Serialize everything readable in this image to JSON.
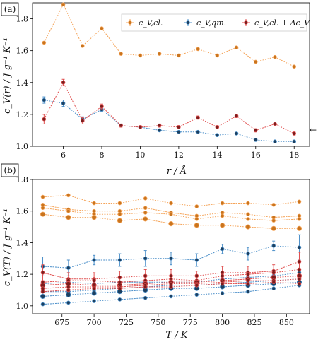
{
  "chart_data": [
    {
      "type": "line",
      "panel_label": "(a)",
      "xlabel": "r / Å",
      "ylabel": "c_V(r) / J g⁻¹ K⁻¹",
      "xlim": [
        4.4,
        18.8
      ],
      "ylim": [
        1.0,
        1.9
      ],
      "xticks": [
        4,
        6,
        8,
        10,
        12,
        14,
        16,
        18
      ],
      "yticks": [
        1.0,
        1.2,
        1.4,
        1.6,
        1.8
      ],
      "legend_position": "top-right",
      "annotation_arrow": "←",
      "series": [
        {
          "name": "c_V,cl.",
          "color": "#f5a55b",
          "marker_color": "#c8741e",
          "x": [
            5,
            6,
            7,
            8,
            9,
            10,
            11,
            12,
            13,
            14,
            15,
            16,
            17,
            18
          ],
          "y": [
            1.65,
            1.89,
            1.63,
            1.74,
            1.58,
            1.57,
            1.58,
            1.57,
            1.61,
            1.57,
            1.62,
            1.53,
            1.56,
            1.5
          ]
        },
        {
          "name": "c_V,qm.",
          "color": "#4b8fc9",
          "marker_color": "#1c3f5f",
          "x": [
            5,
            6,
            7,
            8,
            9,
            10,
            11,
            12,
            13,
            14,
            15,
            16,
            17,
            18
          ],
          "y": [
            1.29,
            1.27,
            1.17,
            1.23,
            1.13,
            1.12,
            1.1,
            1.09,
            1.09,
            1.07,
            1.08,
            1.04,
            1.03,
            1.03
          ],
          "err": [
            0.02,
            0.02,
            0.015,
            0.01,
            0.005,
            0.005,
            0.005,
            0.005,
            0.005,
            0.005,
            0.005,
            0.005,
            0.005,
            0.005
          ]
        },
        {
          "name": "c_V,cl. + Δc_V",
          "color": "#e05050",
          "marker_color": "#7a1d1d",
          "x": [
            5,
            6,
            7,
            8,
            9,
            10,
            11,
            12,
            13,
            14,
            15,
            16,
            17,
            18
          ],
          "y": [
            1.17,
            1.4,
            1.16,
            1.25,
            1.13,
            1.12,
            1.13,
            1.12,
            1.18,
            1.12,
            1.19,
            1.1,
            1.14,
            1.08
          ],
          "err": [
            0.03,
            0.02,
            0.02,
            0.015,
            0.01,
            0.01,
            0.01,
            0.01,
            0.01,
            0.01,
            0.01,
            0.01,
            0.01,
            0.01
          ]
        }
      ]
    },
    {
      "type": "line",
      "panel_label": "(b)",
      "xlabel": "T / K",
      "ylabel": "c_V(T) / J g⁻¹ K⁻¹",
      "xlim": [
        652,
        868
      ],
      "ylim": [
        0.95,
        1.8
      ],
      "xticks": [
        675,
        700,
        725,
        750,
        775,
        800,
        825,
        850
      ],
      "yticks": [
        1.0,
        1.2,
        1.4,
        1.6,
        1.8
      ],
      "x": [
        660,
        680,
        700,
        720,
        740,
        760,
        780,
        800,
        820,
        840,
        860
      ],
      "series": [
        {
          "group": "cl",
          "y": [
            1.69,
            1.7,
            1.65,
            1.65,
            1.68,
            1.65,
            1.63,
            1.65,
            1.65,
            1.64,
            1.66
          ]
        },
        {
          "group": "cl",
          "y": [
            1.64,
            1.61,
            1.6,
            1.6,
            1.62,
            1.59,
            1.57,
            1.59,
            1.58,
            1.56,
            1.57
          ]
        },
        {
          "group": "cl",
          "y": [
            1.62,
            1.6,
            1.58,
            1.58,
            1.59,
            1.58,
            1.55,
            1.57,
            1.55,
            1.54,
            1.55
          ]
        },
        {
          "group": "cl",
          "y": [
            1.58,
            1.56,
            1.56,
            1.54,
            1.55,
            1.52,
            1.51,
            1.51,
            1.5,
            1.49,
            1.49
          ]
        },
        {
          "group": "qm",
          "y": [
            1.25,
            1.24,
            1.29,
            1.29,
            1.3,
            1.3,
            1.29,
            1.36,
            1.33,
            1.38,
            1.37
          ],
          "err": [
            0.06,
            0.05,
            0.03,
            0.04,
            0.05,
            0.04,
            0.04,
            0.03,
            0.04,
            0.03,
            0.08
          ]
        },
        {
          "group": "qm",
          "y": [
            1.14,
            1.15,
            1.14,
            1.15,
            1.15,
            1.15,
            1.15,
            1.17,
            1.18,
            1.19,
            1.21
          ]
        },
        {
          "group": "qm",
          "y": [
            1.09,
            1.09,
            1.1,
            1.11,
            1.12,
            1.13,
            1.13,
            1.14,
            1.15,
            1.16,
            1.17
          ]
        },
        {
          "group": "qm",
          "y": [
            1.06,
            1.07,
            1.08,
            1.09,
            1.1,
            1.11,
            1.11,
            1.12,
            1.13,
            1.14,
            1.15
          ]
        },
        {
          "group": "qm",
          "y": [
            1.01,
            1.02,
            1.03,
            1.04,
            1.05,
            1.06,
            1.07,
            1.08,
            1.09,
            1.11,
            1.13
          ]
        },
        {
          "group": "cl+d",
          "y": [
            1.21,
            1.17,
            1.17,
            1.18,
            1.19,
            1.19,
            1.19,
            1.21,
            1.21,
            1.22,
            1.28
          ],
          "err": [
            0.05,
            0.04,
            0.04,
            0.04,
            0.04,
            0.04,
            0.03,
            0.04,
            0.04,
            0.04,
            0.06
          ]
        },
        {
          "group": "cl+d",
          "y": [
            1.15,
            1.16,
            1.16,
            1.15,
            1.16,
            1.17,
            1.16,
            1.19,
            1.2,
            1.21,
            1.23
          ]
        },
        {
          "group": "cl+d",
          "y": [
            1.13,
            1.14,
            1.13,
            1.13,
            1.14,
            1.15,
            1.15,
            1.16,
            1.17,
            1.18,
            1.19
          ]
        },
        {
          "group": "cl+d",
          "y": [
            1.11,
            1.12,
            1.12,
            1.12,
            1.13,
            1.14,
            1.14,
            1.15,
            1.16,
            1.16,
            1.17
          ]
        },
        {
          "group": "cl+d",
          "y": [
            1.09,
            1.1,
            1.11,
            1.11,
            1.12,
            1.12,
            1.13,
            1.14,
            1.14,
            1.15,
            1.14
          ]
        }
      ],
      "group_colors": {
        "cl": {
          "line": "#f5a55b",
          "marker": "#c8741e"
        },
        "qm": {
          "line": "#4b8fc9",
          "marker": "#1c3f5f"
        },
        "cl+d": {
          "line": "#e05050",
          "marker": "#7a1d1d"
        }
      }
    }
  ]
}
